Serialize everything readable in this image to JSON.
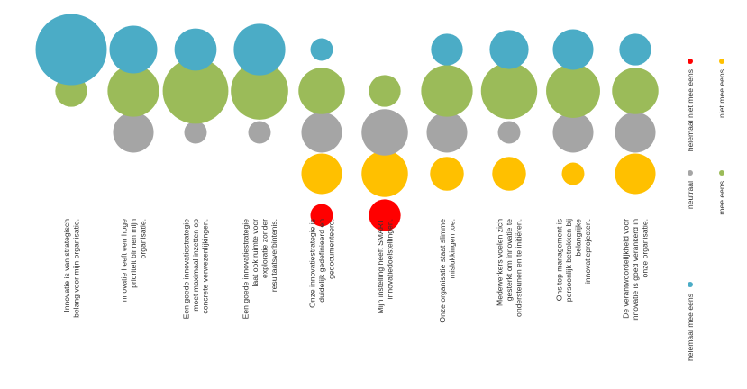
{
  "chart_data": {
    "type": "bubble-matrix",
    "categories": [
      [
        "Innovatie is van strategisch",
        "belang voor mijn organisatie."
      ],
      [
        "Innovatie heeft een hoge",
        "prioriteit binnen mijn",
        "organisatie."
      ],
      [
        "Een goede innovatiestrategie",
        "moet maximaal inzetten op",
        "concrete verwezenlijkingen."
      ],
      [
        "Een goede innovatiestrategie",
        "laat ook ruimte voor",
        "exploratie zonder",
        "resultaatsverbintenis."
      ],
      [
        "Onze innovatiestrategie is",
        "duidelijk gedefinieerd en",
        "gedocumenteerd."
      ],
      [
        "Mijn instelling heeft SMART",
        "innovatiedoelstellingen."
      ],
      [
        "Onze organisatie staat slimme",
        "mislukkingen toe."
      ],
      [
        "Medewerkers voelen zich",
        "gesterkt om innovatie te",
        "ondersteunen en te initiëren."
      ],
      [
        "Ons top management is",
        "persoonlijk betrokken bij",
        "belangrijke",
        "innovatieprojecten."
      ],
      [
        "De verantwoordelijkheid voor",
        "innovatie is goed verankerd in",
        "onze organisatie."
      ]
    ],
    "series": [
      {
        "name": "helemaal mee eens",
        "color": "#4BACC6",
        "values": [
          40,
          18,
          14,
          21,
          4,
          0,
          8,
          12,
          13,
          8
        ]
      },
      {
        "name": "mee eens",
        "color": "#9BBB59",
        "values": [
          8,
          21,
          34,
          26,
          17,
          8,
          21,
          25,
          23,
          17
        ]
      },
      {
        "name": "neutraal",
        "color": "#A5A5A5",
        "values": [
          0,
          13,
          4,
          4,
          13,
          17,
          13,
          4,
          13,
          13
        ]
      },
      {
        "name": "niet mee eens",
        "color": "#FFC000",
        "values": [
          0,
          0,
          0,
          0,
          13,
          17,
          9,
          9,
          4,
          13
        ]
      },
      {
        "name": "helemaal niet mee eens",
        "color": "#FF0000",
        "values": [
          0,
          0,
          0,
          0,
          4,
          8,
          0,
          0,
          0,
          0
        ]
      }
    ],
    "legend": {
      "position": "right",
      "items": [
        {
          "label": "helemaal niet mee eens",
          "color": "#FF0000"
        },
        {
          "label": "niet mee eens",
          "color": "#FFC000"
        },
        {
          "label": "neutraal",
          "color": "#A5A5A5"
        },
        {
          "label": "mee eens",
          "color": "#9BBB59"
        },
        {
          "label": "helemaal mee eens",
          "color": "#4BACC6"
        }
      ]
    }
  }
}
